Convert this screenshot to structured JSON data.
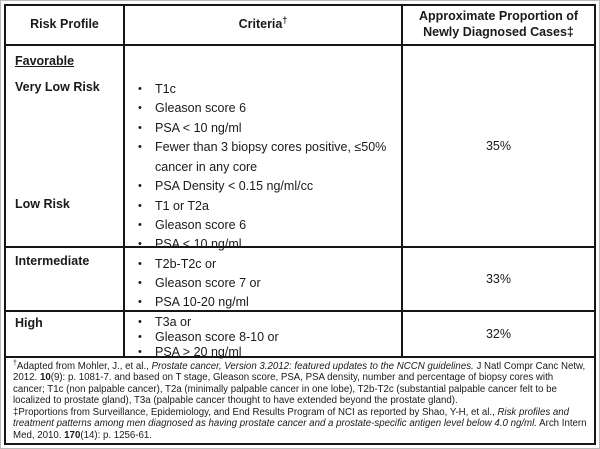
{
  "colors": {
    "border": "#161616",
    "text": "#1a1a1a",
    "background": "#ffffff"
  },
  "header": {
    "risk_profile": "Risk Profile",
    "criteria": "Criteria",
    "criteria_sup": "†",
    "proportion": "Approximate Proportion of Newly Diagnosed Cases‡"
  },
  "favorable": {
    "section_label": "Favorable",
    "groups": [
      {
        "label": "Very Low Risk",
        "bullets": [
          "T1c",
          "Gleason score 6",
          "PSA < 10 ng/ml",
          "Fewer than 3 biopsy cores positive, ≤50% cancer in any core",
          "PSA Density < 0.15 ng/ml/cc"
        ]
      },
      {
        "label": "Low Risk",
        "bullets": [
          "T1 or T2a",
          "Gleason score 6",
          "PSA < 10 ng/ml"
        ]
      }
    ],
    "proportion": "35%"
  },
  "intermediate": {
    "label": "Intermediate",
    "bullets": [
      "T2b-T2c or",
      "Gleason score 7 or",
      "PSA 10-20 ng/ml"
    ],
    "proportion": "33%"
  },
  "high": {
    "label": "High",
    "bullets": [
      "T3a or",
      "Gleason score 8-10 or",
      "PSA > 20 ng/ml"
    ],
    "proportion": "32%"
  },
  "footnotes": {
    "dagger": [
      {
        "t": "†",
        "sup": true
      },
      {
        "t": "Adapted  from Mohler, J., et al., "
      },
      {
        "t": "Prostate cancer, Version 3.2012: featured updates to the NCCN guidelines.",
        "i": true
      },
      {
        "t": " J Natl Compr Canc Netw, 2012. "
      },
      {
        "t": "10",
        "b": true
      },
      {
        "t": "(9): p. 1081-7.  and based on T stage, Gleason score, PSA, PSA density, number and percentage of biopsy cores with cancer; T1c (non palpable cancer), T2a (minimally palpable cancer in one lobe), T2b-T2c (substantial palpable cancer felt to be localized to prostate gland), T3a (palpable cancer thought to have extended beyond the prostate gland)."
      }
    ],
    "double_dagger": [
      {
        "t": "‡Proportions from Surveillance, Epidemiology, and End Results Program of NCI as reported by Shao, Y-H, et al., "
      },
      {
        "t": "Risk profiles and treatment patterns among men diagnosed as having prostate cancer and a prostate-specific antigen level below 4.0 ng/ml.",
        "i": true
      },
      {
        "t": " Arch Intern Med, 2010. "
      },
      {
        "t": "170",
        "b": true
      },
      {
        "t": "(14): p. 1256-61."
      }
    ]
  }
}
